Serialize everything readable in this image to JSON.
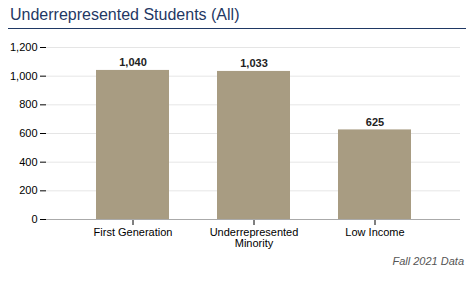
{
  "chart_data": {
    "type": "bar",
    "title": "Underrepresented Students (All)",
    "categories": [
      "First Generation",
      "Underrepresented\nMinority",
      "Low Income"
    ],
    "values": [
      1040,
      1033,
      625
    ],
    "value_labels": [
      "1,040",
      "1,033",
      "625"
    ],
    "data_labels": true,
    "color": "#a89c82",
    "ylim": [
      0,
      1200
    ],
    "yticks": [
      0,
      200,
      400,
      600,
      800,
      {
        "value": 1000,
        "label": "1,000"
      },
      {
        "value": 1200,
        "label": "1,200"
      }
    ],
    "grid": true,
    "footnote": "Fall 2021 Data"
  }
}
